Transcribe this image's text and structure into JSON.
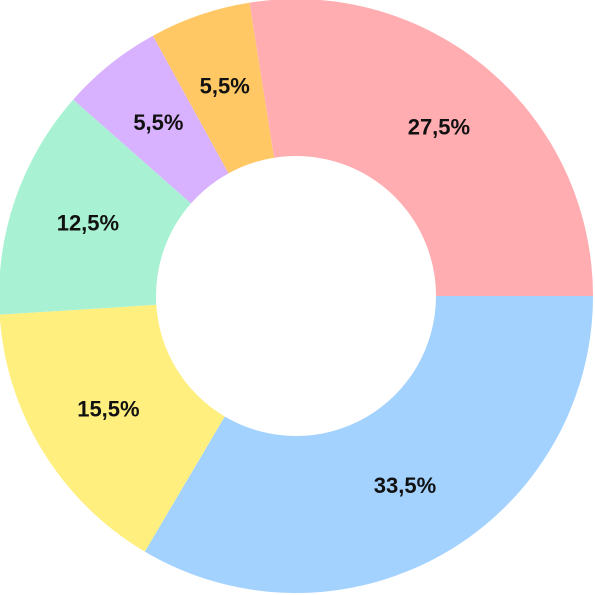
{
  "chart_data": {
    "type": "pie",
    "variant": "donut",
    "title": "",
    "legend": "none",
    "start_angle_deg": 0,
    "direction": "clockwise",
    "slices": [
      {
        "value": 33.5,
        "label": "33,5%",
        "color": "#A3D2FF"
      },
      {
        "value": 15.5,
        "label": "15,5%",
        "color": "#FFEF7F"
      },
      {
        "value": 12.5,
        "label": "12,5%",
        "color": "#A8F2D3"
      },
      {
        "value": 5.5,
        "label": "5,5%",
        "color": "#D8B1FF"
      },
      {
        "value": 5.5,
        "label": "5,5%",
        "color": "#FFC865"
      },
      {
        "value": 27.5,
        "label": "27,5%",
        "color": "#FFADB1"
      }
    ]
  }
}
